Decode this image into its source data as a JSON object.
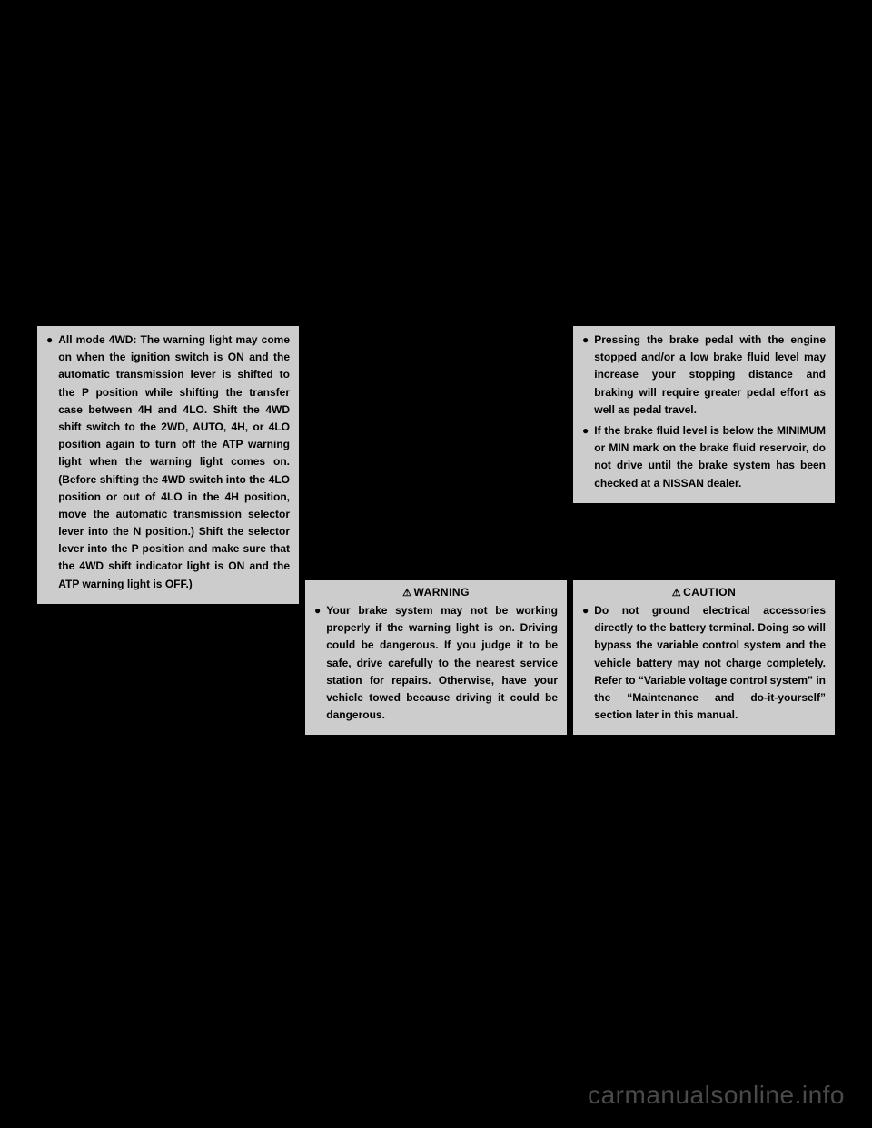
{
  "colors": {
    "page_bg": "#000000",
    "box_bg": "#cccccc",
    "box_border": "#000000",
    "text": "#000000",
    "watermark": "#4a4a4a"
  },
  "typography": {
    "body_fontsize": 12,
    "header_fontsize": 12,
    "watermark_fontsize": 28,
    "line_height": 1.6,
    "font_weight": "bold"
  },
  "column1": {
    "box": {
      "items": [
        "All mode 4WD: The warning light may come on when the ignition switch is ON and the automatic transmission lever is shifted to the P position while shifting the transfer case between 4H and 4LO. Shift the 4WD shift switch to the 2WD, AUTO, 4H, or 4LO position again to turn off the ATP warning light when the warning light comes on. (Before shifting the 4WD switch into the 4LO position or out of 4LO in the 4H position, move the automatic transmission selector lever into the N position.) Shift the selector lever into the P position and make sure that the 4WD shift indicator light is ON and the ATP warning light is OFF.)"
      ]
    }
  },
  "column2": {
    "box": {
      "header": "WARNING",
      "items": [
        "Your brake system may not be working properly if the warning light is on. Driving could be dangerous. If you judge it to be safe, drive carefully to the nearest service station for repairs. Otherwise, have your vehicle towed because driving it could be dangerous."
      ]
    }
  },
  "column3_top": {
    "box": {
      "items": [
        "Pressing the brake pedal with the engine stopped and/or a low brake fluid level may increase your stopping distance and braking will require greater pedal effort as well as pedal travel.",
        "If the brake fluid level is below the MINIMUM or MIN mark on the brake fluid reservoir, do not drive until the brake system has been checked at a NISSAN dealer."
      ]
    }
  },
  "column3_bottom": {
    "box": {
      "header": "CAUTION",
      "items": [
        "Do not ground electrical accessories directly to the battery terminal. Doing so will bypass the variable control system and the vehicle battery may not charge completely. Refer to “Variable voltage control system” in the “Maintenance and do-it-yourself” section later in this manual."
      ]
    }
  },
  "watermark": "carmanualsonline.info"
}
